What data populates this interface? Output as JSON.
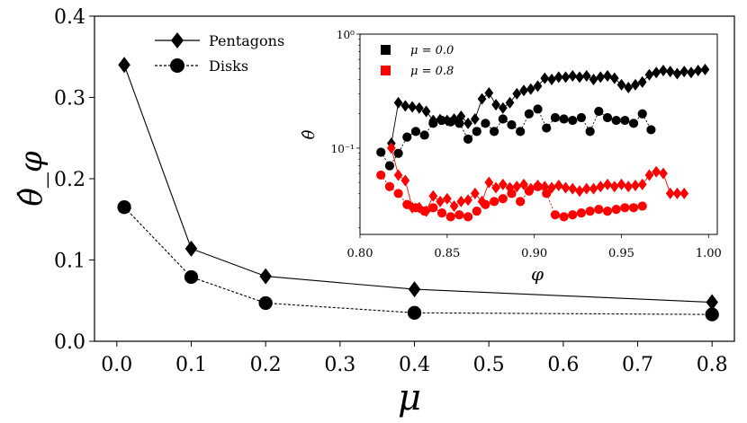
{
  "chart_data": [
    {
      "type": "line",
      "title": "",
      "xlabel": "μ",
      "ylabel": "θ̂_φ",
      "xlim": [
        -0.03,
        0.83
      ],
      "ylim": [
        0.0,
        0.4
      ],
      "xticks": [
        "0.0",
        "0.1",
        "0.2",
        "0.3",
        "0.4",
        "0.5",
        "0.6",
        "0.7",
        "0.8"
      ],
      "yticks": [
        "0.0",
        "0.1",
        "0.2",
        "0.3",
        "0.4"
      ],
      "legend_position": "top-left",
      "series": [
        {
          "name": "Pentagons",
          "marker": "diamond",
          "linestyle": "solid",
          "x": [
            0.01,
            0.1,
            0.2,
            0.4,
            0.8
          ],
          "y": [
            0.34,
            0.114,
            0.08,
            0.064,
            0.048
          ]
        },
        {
          "name": "Disks",
          "marker": "circle",
          "linestyle": "dashed",
          "x": [
            0.01,
            0.1,
            0.2,
            0.4,
            0.8
          ],
          "y": [
            0.165,
            0.079,
            0.047,
            0.035,
            0.033
          ]
        }
      ]
    },
    {
      "type": "line",
      "title": "",
      "xlabel": "φ",
      "ylabel": "θ̂",
      "yscale": "log",
      "xlim": [
        0.8,
        1.005
      ],
      "ylim": [
        0.0175,
        1.0
      ],
      "xticks": [
        "0.80",
        "0.85",
        "0.90",
        "0.95",
        "1.00"
      ],
      "yticks": [
        {
          "label": "10⁰",
          "value": 1.0
        },
        {
          "label": "10⁻¹",
          "value": 0.1
        }
      ],
      "legend_position": "top-left",
      "legend": [
        {
          "label": "μ = 0.0",
          "color": "#000000"
        },
        {
          "label": "μ = 0.8",
          "color": "#ff0000"
        }
      ],
      "series": [
        {
          "name": "μ = 0.0 pentagons",
          "color": "#000000",
          "marker": "diamond",
          "linestyle": "solid",
          "x": [
            0.818,
            0.822,
            0.826,
            0.83,
            0.834,
            0.838,
            0.842,
            0.846,
            0.85,
            0.854,
            0.858,
            0.862,
            0.866,
            0.87,
            0.874,
            0.878,
            0.882,
            0.886,
            0.89,
            0.894,
            0.898,
            0.902,
            0.906,
            0.91,
            0.914,
            0.918,
            0.922,
            0.926,
            0.93,
            0.934,
            0.938,
            0.942,
            0.946,
            0.95,
            0.954,
            0.958,
            0.962,
            0.966,
            0.97,
            0.974,
            0.978,
            0.982,
            0.986,
            0.99,
            0.994,
            0.998
          ],
          "y": [
            0.11,
            0.25,
            0.235,
            0.23,
            0.225,
            0.21,
            0.175,
            0.178,
            0.175,
            0.18,
            0.19,
            0.165,
            0.18,
            0.27,
            0.305,
            0.24,
            0.225,
            0.25,
            0.3,
            0.32,
            0.33,
            0.35,
            0.41,
            0.4,
            0.42,
            0.42,
            0.43,
            0.42,
            0.43,
            0.4,
            0.42,
            0.43,
            0.41,
            0.36,
            0.34,
            0.36,
            0.38,
            0.44,
            0.46,
            0.48,
            0.47,
            0.45,
            0.47,
            0.46,
            0.48,
            0.49
          ]
        },
        {
          "name": "μ = 0.0 disks",
          "color": "#000000",
          "marker": "circle",
          "linestyle": "dashed",
          "x": [
            0.812,
            0.817,
            0.822,
            0.827,
            0.832,
            0.837,
            0.842,
            0.847,
            0.852,
            0.857,
            0.862,
            0.867,
            0.872,
            0.877,
            0.882,
            0.887,
            0.892,
            0.897,
            0.902,
            0.907,
            0.912,
            0.917,
            0.922,
            0.927,
            0.932,
            0.937,
            0.942,
            0.947,
            0.952,
            0.957,
            0.962,
            0.967
          ],
          "y": [
            0.092,
            0.07,
            0.09,
            0.125,
            0.14,
            0.13,
            0.165,
            0.175,
            0.17,
            0.165,
            0.12,
            0.14,
            0.165,
            0.14,
            0.18,
            0.16,
            0.14,
            0.2,
            0.22,
            0.15,
            0.185,
            0.18,
            0.175,
            0.185,
            0.14,
            0.21,
            0.185,
            0.175,
            0.175,
            0.165,
            0.2,
            0.145
          ]
        },
        {
          "name": "μ = 0.8 pentagons",
          "color": "#ff0000",
          "marker": "diamond",
          "linestyle": "solid",
          "x": [
            0.818,
            0.822,
            0.826,
            0.83,
            0.834,
            0.838,
            0.842,
            0.846,
            0.85,
            0.854,
            0.858,
            0.862,
            0.866,
            0.87,
            0.874,
            0.878,
            0.882,
            0.886,
            0.89,
            0.894,
            0.898,
            0.902,
            0.906,
            0.91,
            0.914,
            0.918,
            0.922,
            0.926,
            0.93,
            0.934,
            0.938,
            0.942,
            0.946,
            0.95,
            0.954,
            0.958,
            0.962,
            0.966,
            0.97,
            0.974,
            0.978,
            0.982,
            0.986
          ],
          "y": [
            0.1,
            0.058,
            0.052,
            0.03,
            0.03,
            0.028,
            0.038,
            0.034,
            0.036,
            0.031,
            0.034,
            0.035,
            0.04,
            0.034,
            0.05,
            0.045,
            0.048,
            0.045,
            0.046,
            0.048,
            0.044,
            0.047,
            0.046,
            0.045,
            0.047,
            0.045,
            0.044,
            0.042,
            0.044,
            0.044,
            0.046,
            0.048,
            0.046,
            0.048,
            0.046,
            0.047,
            0.048,
            0.058,
            0.062,
            0.06,
            0.04,
            0.04,
            0.04
          ]
        },
        {
          "name": "μ = 0.8 disks",
          "color": "#ff0000",
          "marker": "circle",
          "linestyle": "dashed",
          "x": [
            0.812,
            0.817,
            0.822,
            0.827,
            0.832,
            0.837,
            0.842,
            0.847,
            0.852,
            0.857,
            0.862,
            0.867,
            0.872,
            0.877,
            0.882,
            0.887,
            0.892,
            0.897,
            0.902,
            0.907,
            0.912,
            0.917,
            0.922,
            0.927,
            0.932,
            0.937,
            0.942,
            0.947,
            0.952,
            0.957,
            0.962
          ],
          "y": [
            0.058,
            0.046,
            0.04,
            0.032,
            0.03,
            0.028,
            0.03,
            0.027,
            0.025,
            0.026,
            0.025,
            0.028,
            0.032,
            0.034,
            0.036,
            0.04,
            0.034,
            0.042,
            0.046,
            0.04,
            0.026,
            0.025,
            0.026,
            0.027,
            0.028,
            0.029,
            0.028,
            0.029,
            0.03,
            0.03,
            0.031
          ]
        }
      ]
    }
  ]
}
